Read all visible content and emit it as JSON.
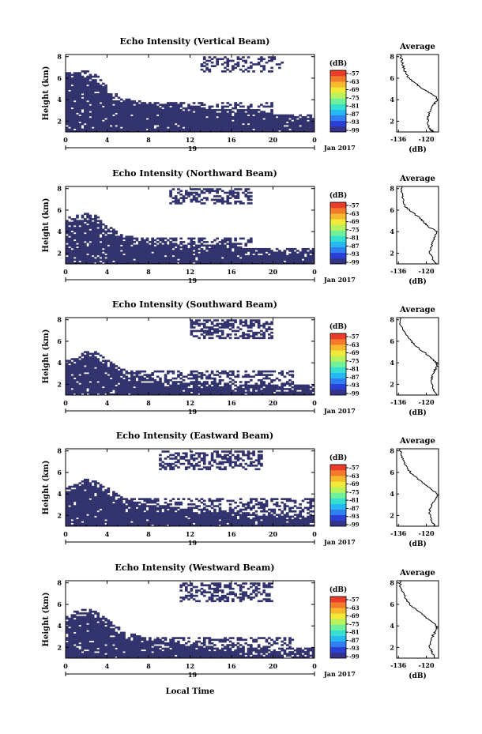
{
  "colors": {
    "echo": "#33336e",
    "axis": "#000000",
    "colorbar": [
      "#33338a",
      "#2a3fd6",
      "#2f7ff0",
      "#26b8f2",
      "#35e0d0",
      "#6ff09a",
      "#b8f25c",
      "#f2ea3a",
      "#f8b82e",
      "#f37a2a",
      "#ea3b2b"
    ]
  },
  "xlabel": "Local Time",
  "chart_data": [
    {
      "type": "heatmap",
      "title": "Echo Intensity (Vertical Beam)",
      "ylabel": "Height (km)",
      "xticks": [
        "0",
        "4",
        "8",
        "12",
        "16",
        "20",
        "0"
      ],
      "date_label": "19",
      "date_suffix": "Jan 2017",
      "yticks": [
        "2",
        "4",
        "6",
        "8"
      ],
      "xlim": [
        0,
        24
      ],
      "ylim": [
        1,
        8.2
      ],
      "colorbar": {
        "unit": "(dB)",
        "labels": [
          "-57",
          "-63",
          "-69",
          "-75",
          "-81",
          "-87",
          "-93",
          "-99"
        ]
      },
      "echo_profile": [
        [
          0,
          6.6
        ],
        [
          1,
          6.6
        ],
        [
          2,
          6.7
        ],
        [
          3,
          6.4
        ],
        [
          4,
          5.2
        ],
        [
          5,
          4.6
        ],
        [
          6,
          4.1
        ],
        [
          8,
          3.8
        ],
        [
          10,
          3.6
        ],
        [
          12,
          3.5
        ],
        [
          14,
          3.2
        ],
        [
          16,
          3.1
        ],
        [
          18,
          2.9
        ],
        [
          20,
          2.7
        ],
        [
          22,
          2.6
        ],
        [
          24,
          2.5
        ]
      ],
      "sparse": [
        [
          7,
          24,
          1.0,
          2.6,
          0.55
        ],
        [
          4,
          20,
          2.5,
          3.8,
          0.45
        ],
        [
          13,
          21,
          6.5,
          8.0,
          0.35
        ]
      ],
      "average": {
        "title": "Average",
        "xlabel": "(dB)",
        "xticks": [
          "-136",
          "-120"
        ],
        "yticks": [
          "2",
          "4",
          "6",
          "8"
        ],
        "xlim": [
          -137,
          -113
        ],
        "ylim": [
          1,
          8.2
        ],
        "profile": [
          [
            1.0,
            -116
          ],
          [
            1.3,
            -118
          ],
          [
            1.8,
            -119
          ],
          [
            2.4,
            -119
          ],
          [
            3.0,
            -118
          ],
          [
            3.5,
            -116
          ],
          [
            3.9,
            -114
          ],
          [
            4.2,
            -114
          ],
          [
            4.6,
            -118
          ],
          [
            5.0,
            -122
          ],
          [
            5.5,
            -126
          ],
          [
            6.0,
            -130
          ],
          [
            6.5,
            -132
          ],
          [
            7.0,
            -133
          ],
          [
            7.6,
            -134
          ],
          [
            8.2,
            -135
          ]
        ]
      }
    },
    {
      "type": "heatmap",
      "title": "Echo Intensity (Northward Beam)",
      "ylabel": "Height (km)",
      "xticks": [
        "0",
        "4",
        "8",
        "12",
        "16",
        "20",
        "0"
      ],
      "date_label": "19",
      "date_suffix": "Jan 2017",
      "yticks": [
        "2",
        "4",
        "6",
        "8"
      ],
      "xlim": [
        0,
        24
      ],
      "ylim": [
        1,
        8.2
      ],
      "colorbar": {
        "unit": "(dB)",
        "labels": [
          "-57",
          "-63",
          "-69",
          "-75",
          "-81",
          "-87",
          "-93",
          "-99"
        ]
      },
      "echo_profile": [
        [
          0,
          5.4
        ],
        [
          1,
          5.6
        ],
        [
          2,
          5.8
        ],
        [
          3,
          5.5
        ],
        [
          4,
          4.6
        ],
        [
          5,
          4.0
        ],
        [
          6,
          3.6
        ],
        [
          8,
          3.3
        ],
        [
          10,
          3.0
        ],
        [
          12,
          2.9
        ],
        [
          14,
          2.8
        ],
        [
          16,
          2.6
        ],
        [
          18,
          2.4
        ],
        [
          20,
          2.3
        ],
        [
          22,
          2.2
        ],
        [
          24,
          2.1
        ]
      ],
      "sparse": [
        [
          6,
          24,
          1.0,
          2.4,
          0.5
        ],
        [
          4,
          18,
          2.3,
          3.5,
          0.45
        ],
        [
          10,
          18,
          6.5,
          8.0,
          0.45
        ]
      ],
      "average": {
        "title": "Average",
        "xlabel": "(dB)",
        "xticks": [
          "-136",
          "-120"
        ],
        "yticks": [
          "2",
          "4",
          "6",
          "8"
        ],
        "xlim": [
          -137,
          -113
        ],
        "ylim": [
          1,
          8.2
        ],
        "profile": [
          [
            1.0,
            -114
          ],
          [
            1.4,
            -116
          ],
          [
            2.0,
            -118
          ],
          [
            2.6,
            -117
          ],
          [
            3.2,
            -116
          ],
          [
            3.6,
            -115
          ],
          [
            4.0,
            -114
          ],
          [
            4.4,
            -118
          ],
          [
            4.8,
            -121
          ],
          [
            5.3,
            -124
          ],
          [
            5.8,
            -128
          ],
          [
            6.3,
            -132
          ],
          [
            6.9,
            -133
          ],
          [
            7.5,
            -134
          ],
          [
            8.2,
            -134
          ]
        ]
      }
    },
    {
      "type": "heatmap",
      "title": "Echo Intensity (Southward Beam)",
      "ylabel": "Height (km)",
      "xticks": [
        "0",
        "4",
        "8",
        "12",
        "16",
        "20",
        "0"
      ],
      "date_label": "19",
      "date_suffix": "Jan 2017",
      "yticks": [
        "2",
        "4",
        "6",
        "8"
      ],
      "xlim": [
        0,
        24
      ],
      "ylim": [
        1,
        8.2
      ],
      "colorbar": {
        "unit": "(dB)",
        "labels": [
          "-57",
          "-63",
          "-69",
          "-75",
          "-81",
          "-87",
          "-93",
          "-99"
        ]
      },
      "echo_profile": [
        [
          0,
          4.2
        ],
        [
          1,
          4.6
        ],
        [
          2,
          5.2
        ],
        [
          3,
          5.0
        ],
        [
          4,
          4.3
        ],
        [
          5,
          3.7
        ],
        [
          6,
          3.2
        ],
        [
          8,
          2.6
        ],
        [
          10,
          2.4
        ],
        [
          12,
          2.3
        ],
        [
          14,
          2.2
        ],
        [
          16,
          2.1
        ],
        [
          18,
          2.0
        ],
        [
          20,
          1.9
        ],
        [
          22,
          1.8
        ],
        [
          24,
          1.8
        ]
      ],
      "sparse": [
        [
          5,
          24,
          1.0,
          2.0,
          0.5
        ],
        [
          6,
          22,
          2.0,
          3.3,
          0.4
        ],
        [
          12,
          20,
          6.3,
          8.0,
          0.5
        ]
      ],
      "average": {
        "title": "Average",
        "xlabel": "(dB)",
        "xticks": [
          "-136",
          "-120"
        ],
        "yticks": [
          "2",
          "4",
          "6",
          "8"
        ],
        "xlim": [
          -137,
          -113
        ],
        "ylim": [
          1,
          8.2
        ],
        "profile": [
          [
            1.0,
            -114
          ],
          [
            1.5,
            -116
          ],
          [
            2.0,
            -117
          ],
          [
            2.6,
            -117
          ],
          [
            3.1,
            -116
          ],
          [
            3.6,
            -114
          ],
          [
            4.0,
            -114
          ],
          [
            4.4,
            -117
          ],
          [
            4.8,
            -120
          ],
          [
            5.3,
            -124
          ],
          [
            5.9,
            -128
          ],
          [
            6.4,
            -131
          ],
          [
            7.0,
            -133
          ],
          [
            7.6,
            -135
          ],
          [
            8.2,
            -135
          ]
        ]
      }
    },
    {
      "type": "heatmap",
      "title": "Echo Intensity (Eastward Beam)",
      "ylabel": "Height (km)",
      "xticks": [
        "0",
        "4",
        "8",
        "12",
        "16",
        "20",
        "0"
      ],
      "date_label": "19",
      "date_suffix": "Jan 2017",
      "yticks": [
        "2",
        "4",
        "6",
        "8"
      ],
      "xlim": [
        0,
        24
      ],
      "ylim": [
        1,
        8.2
      ],
      "colorbar": {
        "unit": "(dB)",
        "labels": [
          "-57",
          "-63",
          "-69",
          "-75",
          "-81",
          "-87",
          "-93",
          "-99"
        ]
      },
      "echo_profile": [
        [
          0,
          4.8
        ],
        [
          1,
          5.0
        ],
        [
          2,
          5.4
        ],
        [
          3,
          5.2
        ],
        [
          4,
          4.6
        ],
        [
          5,
          4.0
        ],
        [
          6,
          3.5
        ],
        [
          8,
          3.0
        ],
        [
          10,
          2.9
        ],
        [
          12,
          2.8
        ],
        [
          14,
          2.6
        ],
        [
          16,
          2.4
        ],
        [
          18,
          2.2
        ],
        [
          20,
          2.0
        ],
        [
          22,
          1.9
        ],
        [
          24,
          1.8
        ]
      ],
      "sparse": [
        [
          4,
          24,
          1.0,
          2.2,
          0.55
        ],
        [
          6,
          24,
          2.2,
          3.6,
          0.45
        ],
        [
          9,
          19,
          6.3,
          8.0,
          0.45
        ]
      ],
      "average": {
        "title": "Average",
        "xlabel": "(dB)",
        "xticks": [
          "-136",
          "-120"
        ],
        "yticks": [
          "2",
          "4",
          "6",
          "8"
        ],
        "xlim": [
          -137,
          -113
        ],
        "ylim": [
          1,
          8.2
        ],
        "profile": [
          [
            1.0,
            -115
          ],
          [
            1.5,
            -117
          ],
          [
            2.0,
            -118
          ],
          [
            2.5,
            -118
          ],
          [
            3.0,
            -117
          ],
          [
            3.4,
            -115
          ],
          [
            3.9,
            -113
          ],
          [
            4.3,
            -116
          ],
          [
            4.8,
            -120
          ],
          [
            5.3,
            -124
          ],
          [
            5.8,
            -128
          ],
          [
            6.4,
            -131
          ],
          [
            7.0,
            -133
          ],
          [
            7.6,
            -134
          ],
          [
            8.2,
            -135
          ]
        ]
      }
    },
    {
      "type": "heatmap",
      "title": "Echo Intensity (Westward Beam)",
      "ylabel": "Height (km)",
      "xticks": [
        "0",
        "4",
        "8",
        "12",
        "16",
        "20",
        "0"
      ],
      "date_label": "19",
      "date_suffix": "Jan 2017",
      "yticks": [
        "2",
        "4",
        "6",
        "8"
      ],
      "xlim": [
        0,
        24
      ],
      "ylim": [
        1,
        8.2
      ],
      "colorbar": {
        "unit": "(dB)",
        "labels": [
          "-57",
          "-63",
          "-69",
          "-75",
          "-81",
          "-87",
          "-93",
          "-99"
        ]
      },
      "echo_profile": [
        [
          0,
          5.2
        ],
        [
          1,
          5.4
        ],
        [
          2,
          5.6
        ],
        [
          3,
          5.4
        ],
        [
          4,
          4.6
        ],
        [
          5,
          4.0
        ],
        [
          6,
          3.4
        ],
        [
          8,
          2.8
        ],
        [
          10,
          2.5
        ],
        [
          12,
          2.3
        ],
        [
          14,
          2.1
        ],
        [
          16,
          1.9
        ],
        [
          18,
          1.8
        ],
        [
          20,
          1.7
        ],
        [
          22,
          1.6
        ],
        [
          24,
          1.6
        ]
      ],
      "sparse": [
        [
          6,
          24,
          1.0,
          2.0,
          0.5
        ],
        [
          5,
          22,
          2.0,
          3.0,
          0.4
        ],
        [
          11,
          20,
          6.3,
          8.0,
          0.45
        ]
      ],
      "average": {
        "title": "Average",
        "xlabel": "(dB)",
        "xticks": [
          "-136",
          "-120"
        ],
        "yticks": [
          "2",
          "4",
          "6",
          "8"
        ],
        "xlim": [
          -137,
          -113
        ],
        "ylim": [
          1,
          8.2
        ],
        "profile": [
          [
            1.0,
            -115
          ],
          [
            1.6,
            -117
          ],
          [
            2.1,
            -118
          ],
          [
            2.7,
            -117
          ],
          [
            3.2,
            -116
          ],
          [
            3.6,
            -114
          ],
          [
            4.0,
            -114
          ],
          [
            4.4,
            -117
          ],
          [
            4.9,
            -121
          ],
          [
            5.4,
            -125
          ],
          [
            5.9,
            -129
          ],
          [
            6.5,
            -132
          ],
          [
            7.1,
            -133
          ],
          [
            7.7,
            -135
          ],
          [
            8.2,
            -135
          ]
        ]
      }
    }
  ]
}
